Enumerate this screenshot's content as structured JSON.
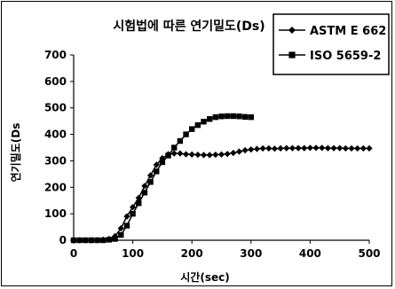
{
  "chart_data": {
    "type": "line",
    "title": "시험법에 따른 연기밀도(Ds)",
    "xlabel": "시간(sec)",
    "ylabel": "연기밀도(Ds",
    "xlim": [
      0,
      500
    ],
    "ylim": [
      0,
      700
    ],
    "x_ticks": [
      0,
      100,
      200,
      300,
      400,
      500
    ],
    "y_ticks": [
      0,
      100,
      200,
      300,
      400,
      500,
      600,
      700
    ],
    "grid": false,
    "legend_position": "top-right",
    "series": [
      {
        "name": "ASTM E 662",
        "marker": "diamond",
        "color": "#000000",
        "x": [
          0,
          10,
          20,
          30,
          40,
          50,
          60,
          70,
          80,
          90,
          100,
          110,
          120,
          130,
          140,
          150,
          160,
          170,
          180,
          190,
          200,
          210,
          220,
          230,
          240,
          250,
          260,
          270,
          280,
          290,
          300,
          310,
          320,
          330,
          340,
          350,
          360,
          370,
          380,
          390,
          400,
          410,
          420,
          430,
          440,
          450,
          460,
          470,
          480,
          490,
          500
        ],
        "values": [
          0,
          0,
          0,
          0,
          0,
          2,
          5,
          15,
          45,
          90,
          125,
          160,
          205,
          245,
          285,
          310,
          325,
          328,
          328,
          325,
          324,
          323,
          322,
          322,
          323,
          324,
          326,
          330,
          335,
          340,
          343,
          345,
          347,
          347,
          346,
          347,
          348,
          348,
          348,
          348,
          349,
          349,
          349,
          348,
          348,
          348,
          347,
          347,
          347,
          347,
          347
        ]
      },
      {
        "name": "ISO 5659-2",
        "marker": "square",
        "color": "#000000",
        "x": [
          0,
          10,
          20,
          30,
          40,
          50,
          60,
          70,
          80,
          90,
          100,
          110,
          120,
          130,
          140,
          150,
          160,
          170,
          180,
          190,
          200,
          210,
          220,
          230,
          240,
          250,
          260,
          270,
          280,
          290,
          300
        ],
        "values": [
          0,
          0,
          0,
          0,
          0,
          0,
          2,
          5,
          20,
          55,
          100,
          140,
          180,
          220,
          260,
          295,
          320,
          350,
          375,
          400,
          420,
          435,
          448,
          458,
          465,
          468,
          469,
          469,
          468,
          466,
          465
        ]
      }
    ]
  }
}
